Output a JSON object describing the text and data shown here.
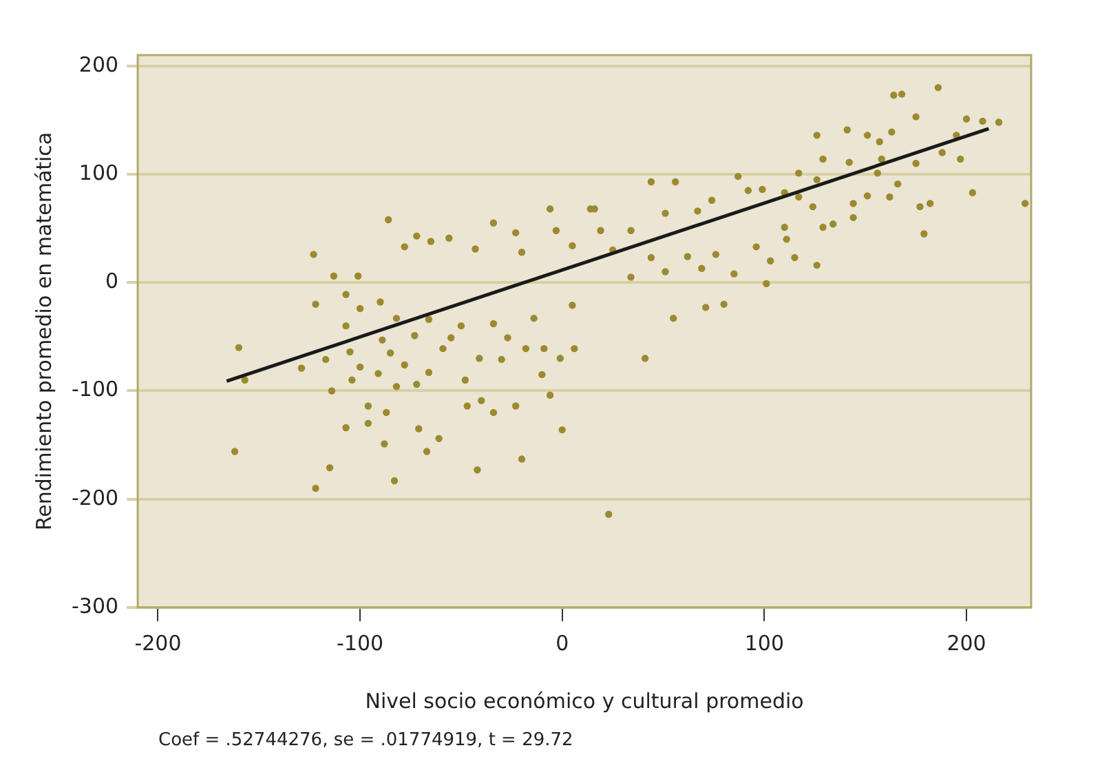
{
  "chart_data": {
    "type": "scatter",
    "xlabel": "Nivel socio económico y cultural promedio",
    "ylabel": "Rendimiento promedio en matemática",
    "annotations": [
      "Coef = .52744276, se = .01774919, t = 29.72"
    ],
    "xlim": [
      -210,
      232
    ],
    "xticks": [
      -200,
      -100,
      0,
      100,
      200
    ],
    "ylim": [
      -300,
      210
    ],
    "yticks": [
      -300,
      -200,
      -100,
      0,
      100,
      200
    ],
    "grid": "y",
    "series": [
      {
        "color": "#9c8a30",
        "marker": "circle",
        "x": [
          -160,
          -122,
          -123,
          -86,
          -113,
          -107,
          -101,
          -90,
          -78,
          -72,
          -65,
          -56,
          -43,
          -34,
          -23,
          -20,
          -6,
          -3,
          5,
          5,
          -14,
          -34,
          -50,
          -66,
          -82,
          -100,
          -107,
          -89,
          -73,
          -55,
          -27,
          -9,
          -105,
          -85,
          -157,
          -162,
          -129,
          -114,
          -107,
          -96,
          -96,
          -87,
          -115,
          -122,
          -83,
          -88,
          -67,
          -61,
          -71,
          -72,
          -82,
          -91,
          -100,
          -104,
          -78,
          -66,
          -48,
          -40,
          -47,
          -42,
          -20,
          -34,
          -23,
          -6,
          -10,
          0,
          -59,
          -41,
          -30,
          -18,
          -1,
          6,
          -117,
          41,
          71,
          55,
          80,
          101,
          85,
          69,
          51,
          34,
          103,
          96,
          76,
          62,
          44,
          25,
          19,
          16,
          34,
          51,
          67,
          74,
          92,
          87,
          99,
          110,
          117,
          124,
          110,
          111,
          115,
          126,
          129,
          134,
          144,
          144,
          151,
          162,
          166,
          156,
          126,
          117,
          129,
          142,
          158,
          126,
          141,
          151,
          157,
          163,
          175,
          175,
          164,
          168,
          186,
          179,
          177,
          182,
          203,
          197,
          195,
          200,
          208,
          216,
          229,
          188,
          44,
          56,
          14,
          23
        ],
        "values": [
          -60,
          -20,
          26,
          58,
          6,
          -11,
          6,
          -18,
          33,
          43,
          38,
          41,
          31,
          55,
          46,
          28,
          68,
          48,
          34,
          -21,
          -33,
          -38,
          -40,
          -34,
          -33,
          -24,
          -40,
          -53,
          -49,
          -51,
          -51,
          -61,
          -64,
          -65,
          -90,
          -156,
          -79,
          -100,
          -134,
          -130,
          -114,
          -120,
          -171,
          -190,
          -183,
          -149,
          -156,
          -144,
          -135,
          -94,
          -96,
          -84,
          -78,
          -90,
          -76,
          -83,
          -90,
          -109,
          -114,
          -173,
          -163,
          -120,
          -114,
          -104,
          -85,
          -136,
          -61,
          -70,
          -71,
          -61,
          -70,
          -61,
          -71,
          -70,
          -23,
          -33,
          -20,
          -1,
          8,
          13,
          10,
          5,
          20,
          33,
          26,
          24,
          23,
          30,
          48,
          68,
          48,
          64,
          66,
          76,
          85,
          98,
          86,
          83,
          79,
          70,
          51,
          40,
          23,
          16,
          51,
          54,
          60,
          73,
          80,
          79,
          91,
          101,
          95,
          101,
          114,
          111,
          114,
          136,
          141,
          136,
          130,
          139,
          110,
          153,
          173,
          174,
          180,
          45,
          70,
          73,
          83,
          114,
          136,
          151,
          149,
          148,
          73,
          120,
          93,
          93,
          68,
          -214
        ]
      },
      {
        "type": "line",
        "marker": "none",
        "color": "#1a1a1a",
        "x": [
          -166,
          211
        ],
        "values": [
          -91,
          142
        ]
      }
    ]
  }
}
